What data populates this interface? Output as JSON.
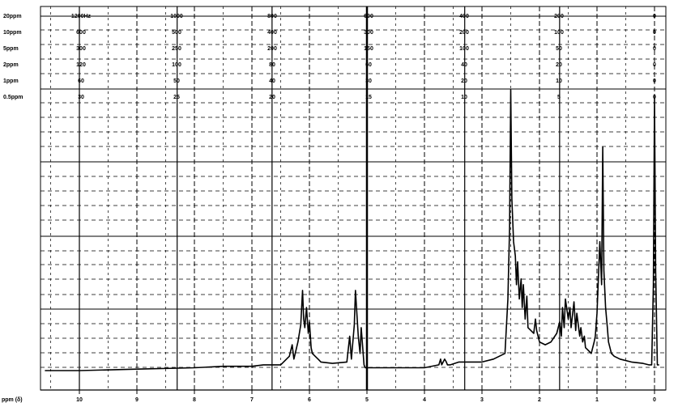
{
  "chart_data": {
    "type": "line",
    "title": "",
    "xlabel": "ppm (δ)",
    "ylabel": "",
    "x_reversed": true,
    "xlim": [
      10.7,
      -0.1
    ],
    "ylim": [
      0,
      1
    ],
    "grid": true,
    "x_ticks": [
      {
        "value": 10,
        "label": "10"
      },
      {
        "value": 9,
        "label": "9"
      },
      {
        "value": 8,
        "label": "8"
      },
      {
        "value": 7,
        "label": "7"
      },
      {
        "value": 6,
        "label": "6"
      },
      {
        "value": 5,
        "label": "5"
      },
      {
        "value": 4,
        "label": "4"
      },
      {
        "value": 3,
        "label": "3"
      },
      {
        "value": 2,
        "label": "2"
      },
      {
        "value": 1,
        "label": "1"
      },
      {
        "value": 0,
        "label": "0"
      }
    ],
    "sweep_scales": [
      {
        "range": "20ppm",
        "labels": [
          "1200Hz",
          "1000",
          "800",
          "600",
          "400",
          "200",
          "0"
        ]
      },
      {
        "range": "10ppm",
        "labels": [
          "600",
          "500",
          "400",
          "300",
          "200",
          "100",
          "0"
        ]
      },
      {
        "range": "5ppm",
        "labels": [
          "300",
          "250",
          "200",
          "150",
          "100",
          "50",
          "0"
        ]
      },
      {
        "range": "2ppm",
        "labels": [
          "120",
          "100",
          "80",
          "60",
          "40",
          "20",
          "0"
        ]
      },
      {
        "range": "1ppm",
        "labels": [
          "60",
          "50",
          "40",
          "30",
          "20",
          "10",
          "0"
        ]
      },
      {
        "range": "0.5ppm",
        "labels": [
          "30",
          "25",
          "20",
          "15",
          "10",
          "5",
          "0"
        ]
      }
    ],
    "series": [
      {
        "x": [
          10.6,
          10.0,
          9.0,
          8.0,
          7.5,
          7.0,
          6.8,
          6.5,
          6.35,
          6.3,
          6.27,
          6.2,
          6.15,
          6.12,
          6.1,
          6.08,
          6.05,
          6.02,
          6.0,
          5.97,
          5.95,
          5.9,
          5.85,
          5.8,
          5.6,
          5.35,
          5.3,
          5.27,
          5.22,
          5.2,
          5.15,
          5.12,
          5.1,
          5.05,
          5.03,
          5.0,
          4.9,
          4.5,
          4.0,
          3.75,
          3.72,
          3.7,
          3.65,
          3.62,
          3.6,
          3.55,
          3.4,
          3.0,
          2.8,
          2.6,
          2.55,
          2.52,
          2.5,
          2.48,
          2.45,
          2.42,
          2.4,
          2.38,
          2.35,
          2.32,
          2.3,
          2.28,
          2.25,
          2.22,
          2.2,
          2.15,
          2.1,
          2.07,
          2.05,
          2.0,
          1.9,
          1.8,
          1.7,
          1.65,
          1.62,
          1.6,
          1.57,
          1.55,
          1.5,
          1.47,
          1.45,
          1.4,
          1.37,
          1.35,
          1.3,
          1.28,
          1.25,
          1.22,
          1.2,
          1.15,
          1.1,
          1.05,
          1.03,
          1.0,
          0.98,
          0.95,
          0.92,
          0.9,
          0.88,
          0.85,
          0.82,
          0.8,
          0.75,
          0.7,
          0.6,
          0.4,
          0.2,
          0.1,
          0.05,
          0.02,
          0.0,
          -0.02,
          -0.05,
          -0.08
        ],
        "y": [
          0.0,
          0.0,
          0.005,
          0.01,
          0.015,
          0.015,
          0.02,
          0.02,
          0.05,
          0.09,
          0.04,
          0.1,
          0.16,
          0.28,
          0.18,
          0.15,
          0.22,
          0.13,
          0.17,
          0.08,
          0.06,
          0.05,
          0.04,
          0.03,
          0.025,
          0.03,
          0.12,
          0.04,
          0.16,
          0.28,
          0.12,
          0.06,
          0.15,
          0.02,
          0.01,
          0.01,
          0.01,
          0.01,
          0.01,
          0.02,
          0.04,
          0.02,
          0.04,
          0.03,
          0.02,
          0.02,
          0.03,
          0.03,
          0.04,
          0.06,
          0.25,
          0.5,
          0.98,
          0.6,
          0.45,
          0.4,
          0.3,
          0.38,
          0.25,
          0.32,
          0.22,
          0.3,
          0.18,
          0.26,
          0.15,
          0.14,
          0.13,
          0.18,
          0.14,
          0.1,
          0.09,
          0.1,
          0.13,
          0.17,
          0.12,
          0.22,
          0.15,
          0.25,
          0.18,
          0.22,
          0.15,
          0.24,
          0.14,
          0.2,
          0.12,
          0.15,
          0.1,
          0.12,
          0.08,
          0.07,
          0.06,
          0.1,
          0.12,
          0.2,
          0.3,
          0.45,
          0.3,
          0.78,
          0.35,
          0.22,
          0.15,
          0.1,
          0.06,
          0.05,
          0.04,
          0.03,
          0.025,
          0.02,
          0.02,
          0.3,
          0.95,
          0.35,
          0.02,
          0.02
        ]
      }
    ]
  }
}
